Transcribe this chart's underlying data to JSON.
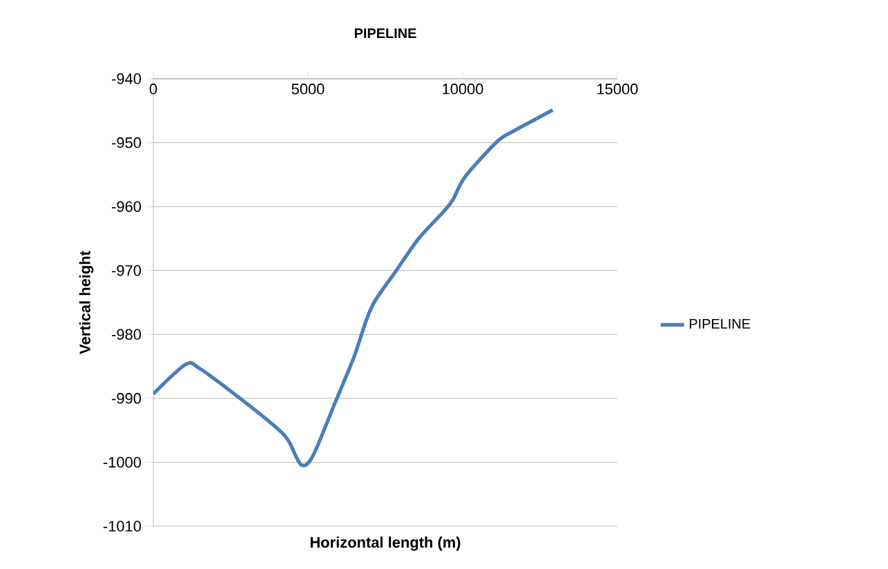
{
  "chart_data": {
    "type": "line",
    "title": "PIPELINE",
    "xlabel": "Horizontal length (m)",
    "ylabel": "Vertical height",
    "xlim": [
      0,
      15000
    ],
    "ylim": [
      -1010,
      -940
    ],
    "xticks": [
      0,
      5000,
      10000,
      15000
    ],
    "yticks": [
      -1010,
      -1000,
      -990,
      -980,
      -970,
      -960,
      -950,
      -940
    ],
    "grid": "y",
    "legend": "right",
    "marker": "none",
    "line_style": "solid",
    "x": [
      0,
      1045,
      1490,
      2910,
      4100,
      4400,
      4780,
      5150,
      5900,
      6490,
      6870,
      7160,
      7840,
      8580,
      9400,
      9700,
      10070,
      11120,
      11720,
      12910
    ],
    "series": [
      {
        "name": "PIPELINE",
        "color": "#4a7ebb",
        "values": [
          -989.3,
          -984.7,
          -985.3,
          -990.4,
          -995.1,
          -996.9,
          -1000.4,
          -999.1,
          -990.4,
          -983.5,
          -978.0,
          -974.8,
          -970.1,
          -965.0,
          -960.7,
          -958.8,
          -955.4,
          -949.8,
          -948.0,
          -944.9
        ]
      }
    ]
  }
}
